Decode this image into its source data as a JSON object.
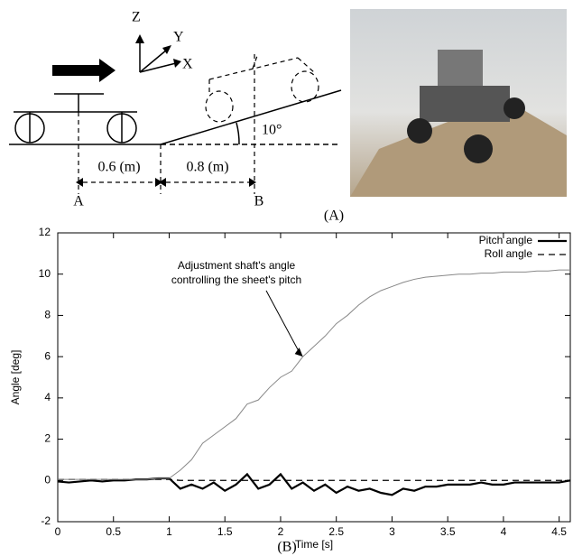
{
  "diagram": {
    "labels": {
      "z": "Z",
      "y": "Y",
      "x": "X",
      "dist1": "0.6 (m)",
      "dist2": "0.8 (m)",
      "a": "A",
      "b": "B",
      "angle": "10°"
    },
    "caption": "(A)"
  },
  "chart_data": {
    "type": "line",
    "caption": "(B)",
    "x_label": "Time [s]",
    "y_label": "Angle [deg]",
    "x": [
      0,
      0.1,
      0.2,
      0.3,
      0.4,
      0.5,
      0.6,
      0.7,
      0.8,
      0.9,
      1.0,
      1.1,
      1.2,
      1.3,
      1.4,
      1.5,
      1.6,
      1.7,
      1.8,
      1.9,
      2.0,
      2.1,
      2.2,
      2.3,
      2.4,
      2.5,
      2.6,
      2.7,
      2.8,
      2.9,
      3.0,
      3.1,
      3.2,
      3.3,
      3.4,
      3.5,
      3.6,
      3.7,
      3.8,
      3.9,
      4.0,
      4.1,
      4.2,
      4.3,
      4.4,
      4.5,
      4.6
    ],
    "series": [
      {
        "name": "Pitch angle",
        "color": "#000000",
        "line_style": "solid",
        "width": 2.2,
        "values": [
          -0.05,
          -0.1,
          -0.05,
          0,
          -0.05,
          0,
          0,
          0.05,
          0.05,
          0.1,
          0.1,
          -0.4,
          -0.2,
          -0.4,
          -0.1,
          -0.5,
          -0.2,
          0.3,
          -0.4,
          -0.2,
          0.3,
          -0.4,
          -0.1,
          -0.5,
          -0.2,
          -0.6,
          -0.3,
          -0.5,
          -0.4,
          -0.6,
          -0.7,
          -0.4,
          -0.5,
          -0.3,
          -0.3,
          -0.2,
          -0.2,
          -0.2,
          -0.1,
          -0.2,
          -0.2,
          -0.1,
          -0.1,
          -0.1,
          -0.1,
          -0.1,
          0
        ]
      },
      {
        "name": "Roll angle",
        "color": "#000000",
        "line_style": "dashed",
        "width": 1.3,
        "values": [
          0.05,
          0.05,
          0.05,
          0.05,
          0.05,
          0.05,
          0.05,
          0.05,
          0.05,
          0.05,
          0.05,
          0,
          0,
          0,
          0,
          0,
          0,
          0,
          0,
          0,
          0,
          0,
          0,
          0,
          0,
          0,
          0,
          0,
          0,
          0,
          0,
          0,
          0,
          0,
          0,
          0,
          0,
          0,
          0,
          0,
          0,
          0,
          0,
          0,
          0,
          0,
          0
        ]
      },
      {
        "color": "#888888",
        "line_style": "solid",
        "width": 1,
        "values": [
          0.05,
          0.05,
          0.05,
          0.05,
          0.05,
          0.05,
          0.05,
          0.05,
          0.05,
          0.1,
          0.1,
          0.5,
          1.0,
          1.8,
          2.2,
          2.6,
          3.0,
          3.7,
          3.9,
          4.5,
          5.0,
          5.3,
          6.0,
          6.5,
          7.0,
          7.6,
          8.0,
          8.5,
          8.9,
          9.2,
          9.4,
          9.6,
          9.75,
          9.85,
          9.9,
          9.95,
          10.0,
          10.0,
          10.05,
          10.05,
          10.1,
          10.1,
          10.1,
          10.15,
          10.15,
          10.2,
          10.2
        ]
      }
    ],
    "annotations": [
      {
        "lines": [
          "Adjustment shaft's angle",
          "controlling the sheet's pitch"
        ],
        "x": 2.2,
        "y": 6.0
      }
    ],
    "xlim": [
      0,
      4.6
    ],
    "xticks": [
      0,
      0.5,
      1,
      1.5,
      2,
      2.5,
      3,
      3.5,
      4,
      4.5
    ],
    "ylim": [
      -2,
      12
    ],
    "yticks": [
      -2,
      0,
      2,
      4,
      6,
      8,
      10,
      12
    ],
    "grid": false,
    "legend": "top-right"
  }
}
